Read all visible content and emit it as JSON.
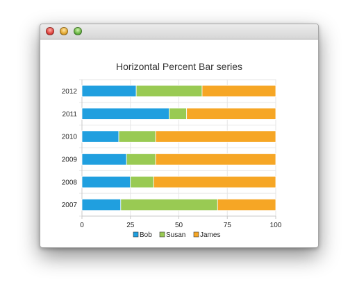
{
  "chart_data": {
    "type": "bar",
    "orientation": "horizontal",
    "stacked": "percent",
    "title": "Horizontal Percent Bar series",
    "categories": [
      "2007",
      "2008",
      "2009",
      "2010",
      "2011",
      "2012"
    ],
    "series": [
      {
        "name": "Bob",
        "color": "#209fdf",
        "values": [
          20,
          25,
          23,
          19,
          45,
          28
        ]
      },
      {
        "name": "Susan",
        "color": "#99ca53",
        "values": [
          50,
          12,
          15,
          19,
          9,
          34
        ]
      },
      {
        "name": "James",
        "color": "#f6a625",
        "values": [
          30,
          63,
          62,
          62,
          46,
          38
        ]
      }
    ],
    "xlim": [
      0,
      100
    ],
    "xticks": [
      "0",
      "25",
      "50",
      "75",
      "100"
    ],
    "grid": true,
    "legend_position": "bottom"
  }
}
